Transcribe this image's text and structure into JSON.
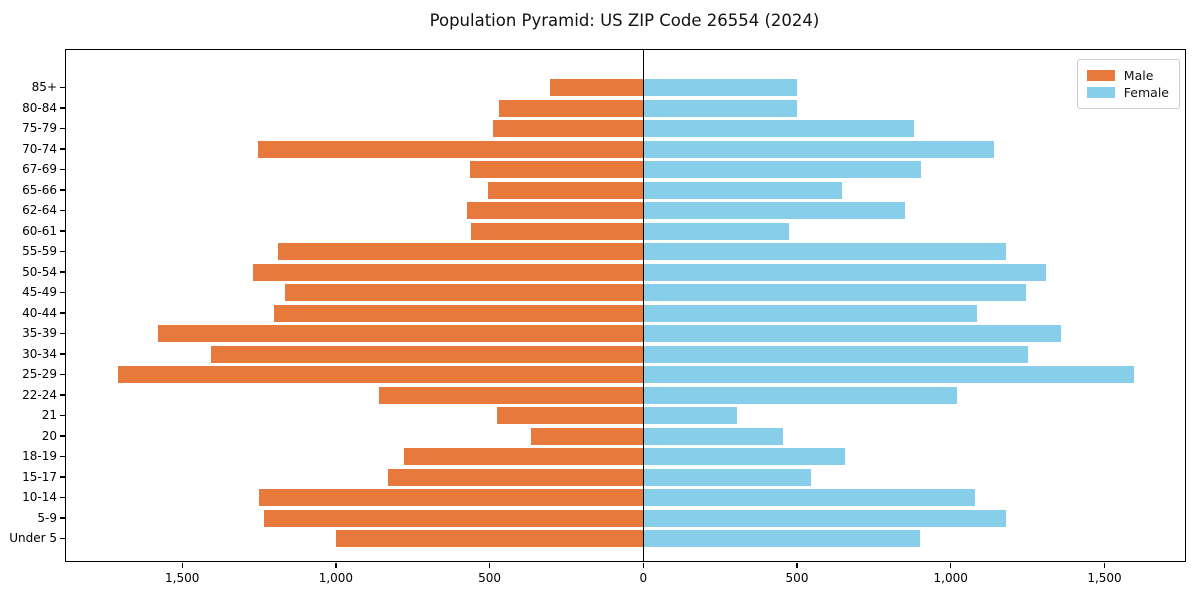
{
  "title": "Population Pyramid: US ZIP Code 26554 (2024)",
  "legend": {
    "male": "Male",
    "female": "Female"
  },
  "colors": {
    "male": "#e8793d",
    "female": "#87ceeb",
    "axis": "#000000",
    "legend_border": "#cccccc",
    "background": "#ffffff"
  },
  "chart_data": {
    "type": "bar",
    "variant": "population-pyramid",
    "title": "Population Pyramid: US ZIP Code 26554 (2024)",
    "categories": [
      "85+",
      "80-84",
      "75-79",
      "70-74",
      "67-69",
      "65-66",
      "62-64",
      "60-61",
      "55-59",
      "50-54",
      "45-49",
      "40-44",
      "35-39",
      "30-34",
      "25-29",
      "22-24",
      "21",
      "20",
      "18-19",
      "15-17",
      "10-14",
      "5-9",
      "Under 5"
    ],
    "categories_order": "top-to-bottom",
    "series": [
      {
        "name": "Male",
        "side": "left",
        "color": "#e8793d",
        "values": [
          305,
          470,
          490,
          1255,
          565,
          505,
          575,
          560,
          1190,
          1270,
          1165,
          1200,
          1580,
          1405,
          1710,
          860,
          475,
          365,
          780,
          830,
          1250,
          1235,
          1000
        ]
      },
      {
        "name": "Female",
        "side": "right",
        "color": "#87ceeb",
        "values": [
          500,
          500,
          880,
          1140,
          905,
          645,
          850,
          475,
          1180,
          1310,
          1245,
          1085,
          1360,
          1250,
          1595,
          1020,
          305,
          455,
          655,
          545,
          1080,
          1180,
          900
        ]
      }
    ],
    "xlabel": "",
    "ylabel": "",
    "x_axis": {
      "tick_values": [
        -1500,
        -1000,
        -500,
        0,
        500,
        1000,
        1500
      ],
      "tick_labels": [
        "1,500",
        "1,000",
        "500",
        "0",
        "500",
        "1,000",
        "1,500"
      ],
      "xlim": [
        -1878,
        1762
      ]
    },
    "center_line_x": 0,
    "grid": false,
    "legend_position": "upper-right"
  }
}
